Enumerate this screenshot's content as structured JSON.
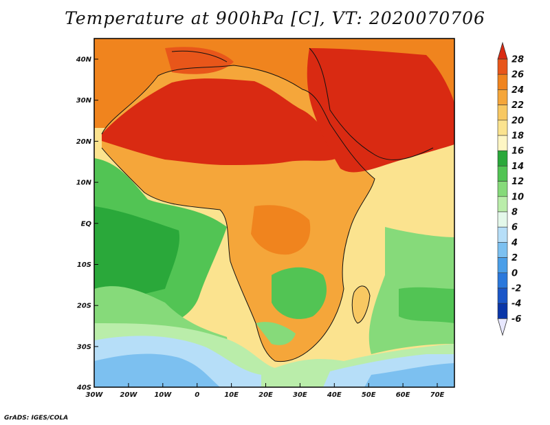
{
  "title": "Temperature at 900hPa [C], VT: 2020070706",
  "credit": "GrADS: IGES/COLA",
  "lat_ticks": [
    "40N",
    "30N",
    "20N",
    "10N",
    "EQ",
    "10S",
    "20S",
    "30S",
    "40S"
  ],
  "lon_ticks": [
    "30W",
    "20W",
    "10W",
    "0",
    "10E",
    "20E",
    "30E",
    "40E",
    "50E",
    "60E",
    "70E"
  ],
  "colorbar": {
    "labels": [
      "28",
      "26",
      "24",
      "22",
      "20",
      "18",
      "16",
      "14",
      "12",
      "10",
      "8",
      "6",
      "4",
      "2",
      "0",
      "-2",
      "-4",
      "-6"
    ],
    "colors": [
      "#d92a12",
      "#e8561a",
      "#f0841e",
      "#f5a63a",
      "#f8c862",
      "#fbe38f",
      "#fef6c4",
      "#2aa83a",
      "#52c454",
      "#86da7a",
      "#baedaa",
      "#e4f8ea",
      "#b6def8",
      "#7cc0f0",
      "#4a9ee8",
      "#2a78dc",
      "#1a56c8",
      "#0a36a8",
      "#0a1a7a"
    ]
  }
}
